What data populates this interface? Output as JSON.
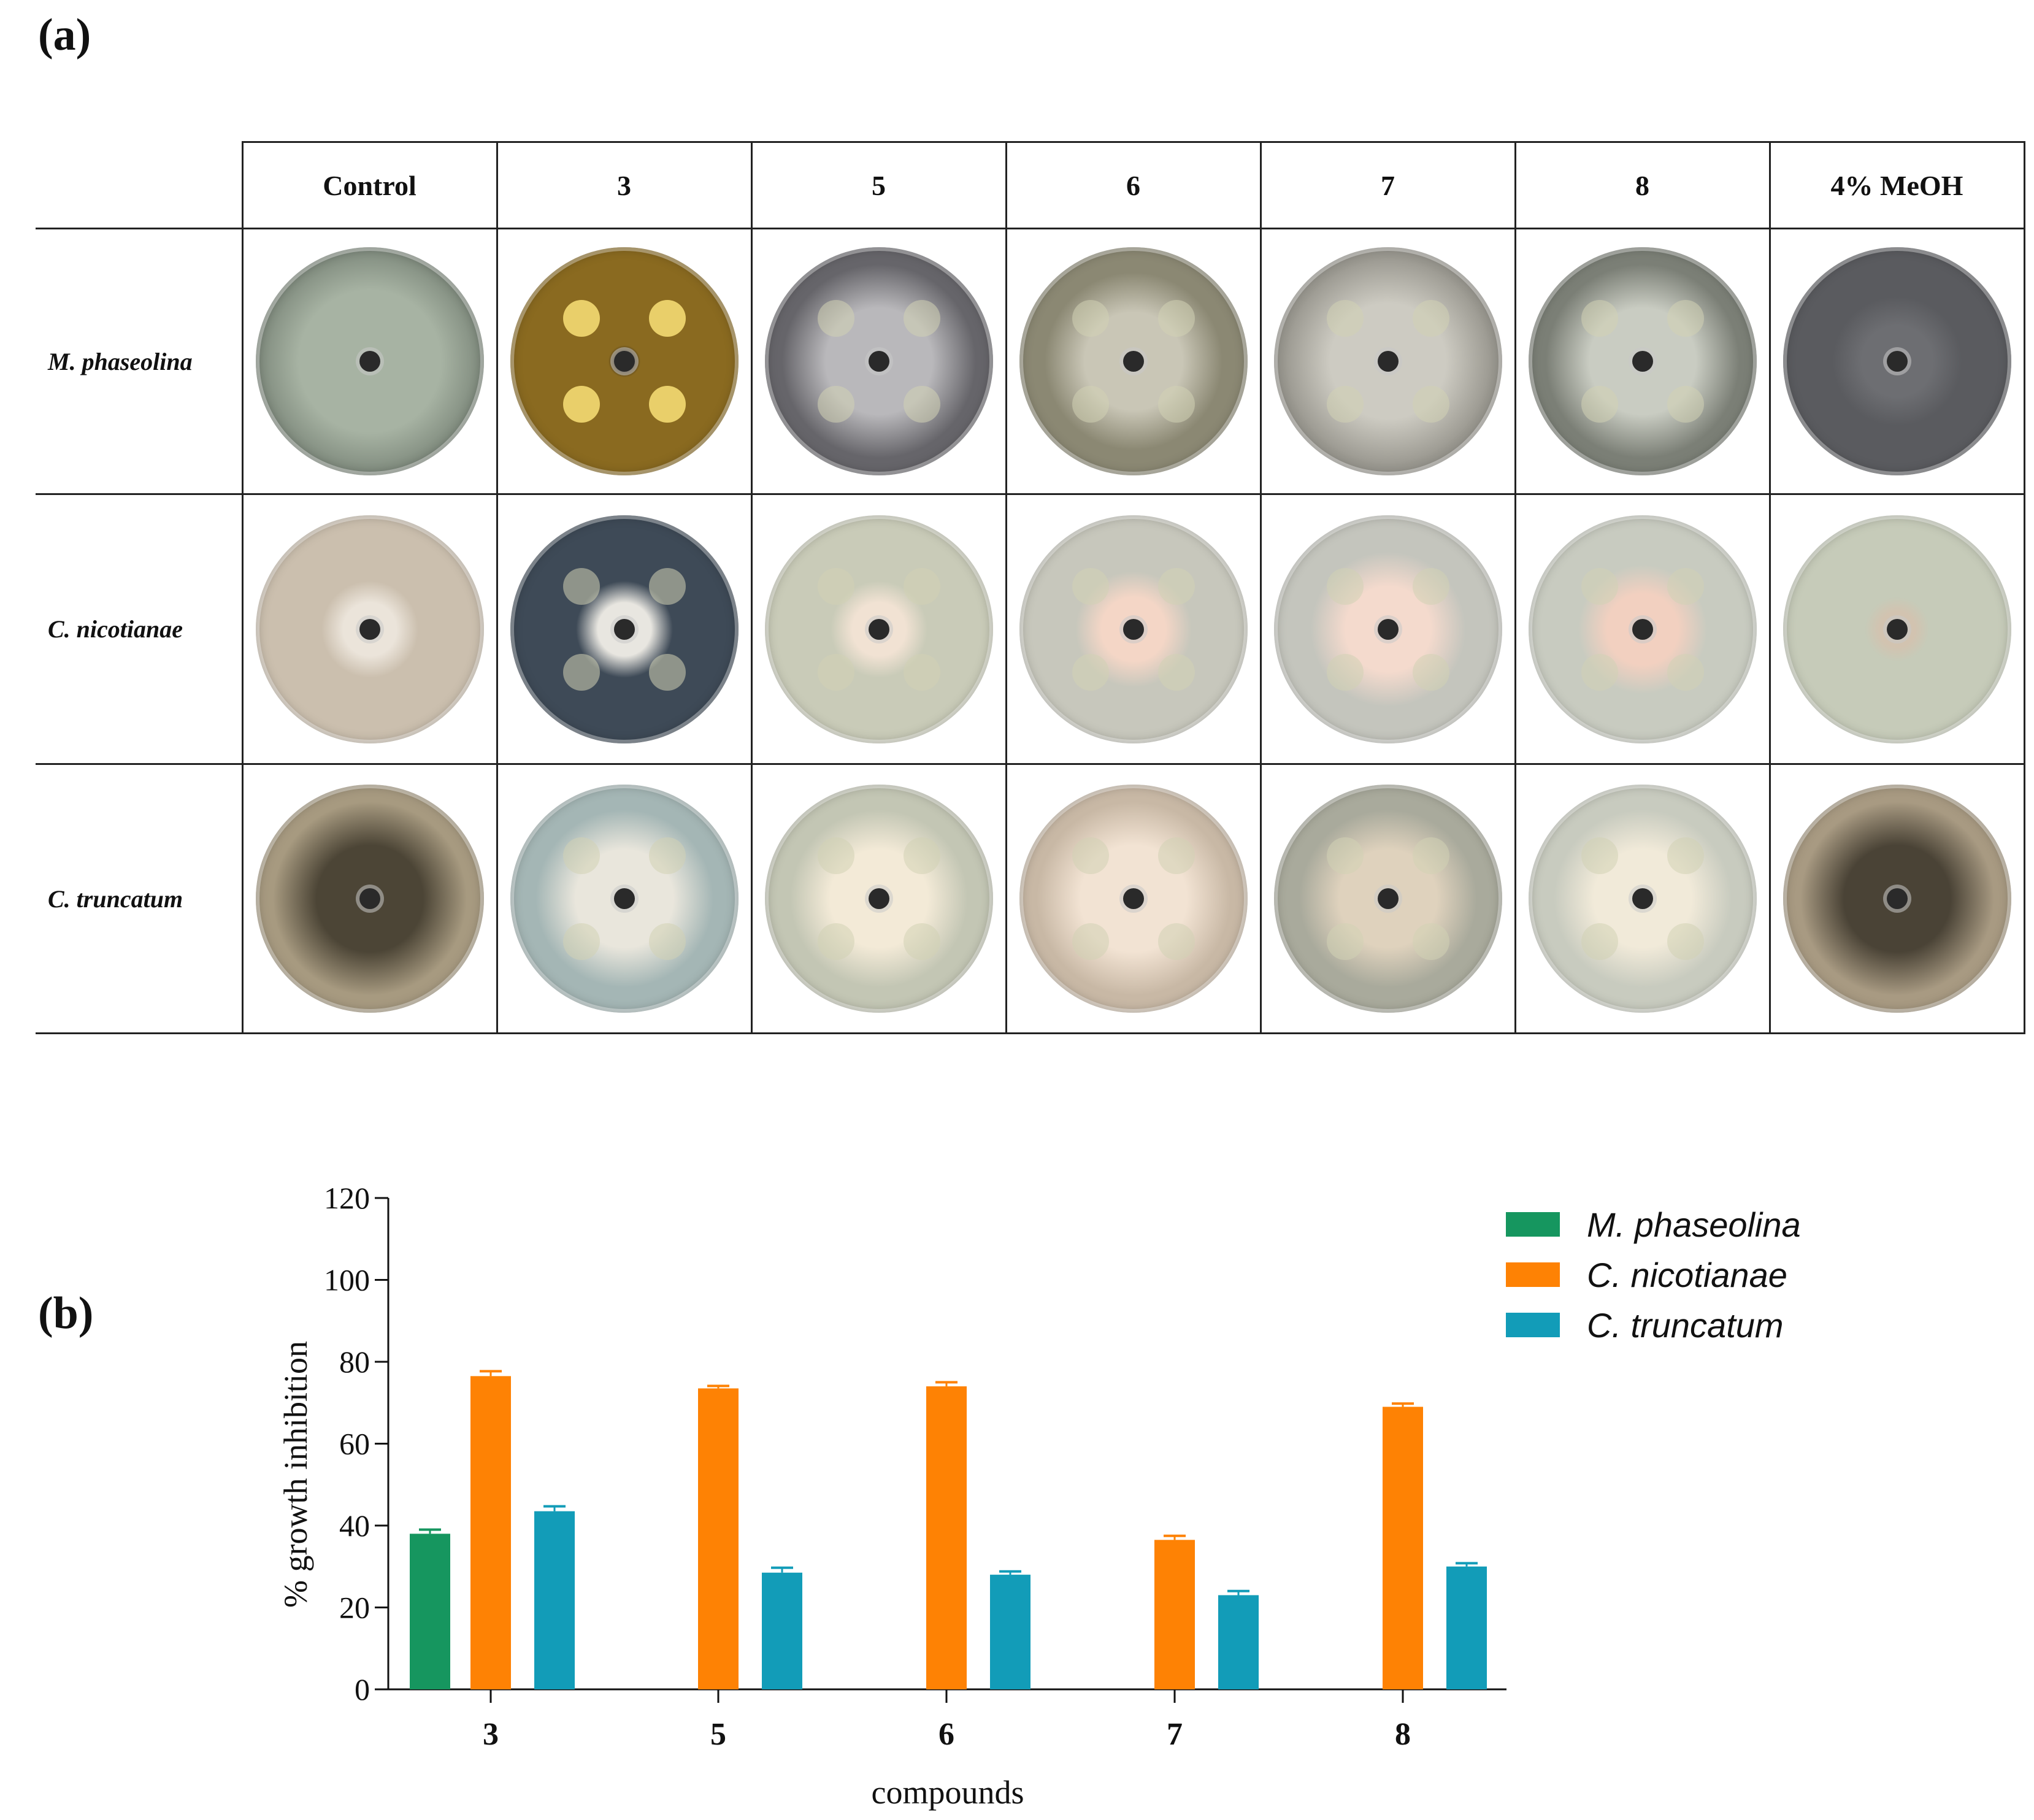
{
  "panel_labels": {
    "a": "(a)",
    "b": "(b)"
  },
  "grid": {
    "columns": [
      "Control",
      "3",
      "5",
      "6",
      "7",
      "8",
      "4% MeOH"
    ],
    "rows": [
      "M. phaseolina",
      "C. nicotianae",
      "C. truncatum"
    ],
    "dish_colors": [
      [
        "#6f7a6e",
        "#8a6a20",
        "#66656a",
        "#8b8873",
        "#9a9890",
        "#7b7f76",
        "#5a5b5f"
      ],
      [
        "#cbbfae",
        "#3e4a57",
        "#c9cbb8",
        "#c7c7bc",
        "#c4c5bd",
        "#c8cbc0",
        "#c6cbb9"
      ],
      [
        "#a79a80",
        "#a4b6b5",
        "#c3c6b4",
        "#c8b8a5",
        "#a9aa9c",
        "#c8cbbf",
        "#a89a82"
      ]
    ],
    "colony_colors": [
      [
        "#a7b3a3",
        "#2e2418",
        "#b9b8bb",
        "#c9c6b6",
        "#cdcbc2",
        "#c9ccc2",
        "#6d6e72"
      ],
      [
        "#ebe4da",
        "#e8e6e0",
        "#f1e2d3",
        "#f4d6c6",
        "#f4dacd",
        "#f2d0c0",
        "#d2c3b0"
      ],
      [
        "#4c4536",
        "#e9e6dc",
        "#f3ead7",
        "#f2e3d3",
        "#dfd2bd",
        "#f1ead9",
        "#4a4336"
      ]
    ]
  },
  "colors": {
    "m_phaseolina": "#16965f",
    "c_nicotianae": "#fe8204",
    "c_truncatum": "#129cb8"
  },
  "chart_data": {
    "type": "bar",
    "title": "",
    "xlabel": "compounds",
    "ylabel": "% growth inhibition",
    "categories": [
      "3",
      "5",
      "6",
      "7",
      "8"
    ],
    "ylim": [
      0,
      120
    ],
    "yticks": [
      "0",
      "20",
      "40",
      "60",
      "80",
      "100",
      "120"
    ],
    "legend_position": "top-right",
    "series": [
      {
        "name": "M. phaseolina",
        "values": [
          38,
          0,
          0,
          0,
          0
        ],
        "errors": [
          1,
          0,
          0,
          0,
          0
        ]
      },
      {
        "name": "C. nicotianae",
        "values": [
          76.5,
          73.5,
          74,
          36.5,
          69
        ],
        "errors": [
          1.2,
          0.6,
          1,
          1,
          0.8
        ]
      },
      {
        "name": "C. truncatum",
        "values": [
          43.5,
          28.5,
          28,
          23,
          30
        ],
        "errors": [
          1.2,
          1.2,
          0.8,
          1,
          0.8
        ]
      }
    ]
  }
}
